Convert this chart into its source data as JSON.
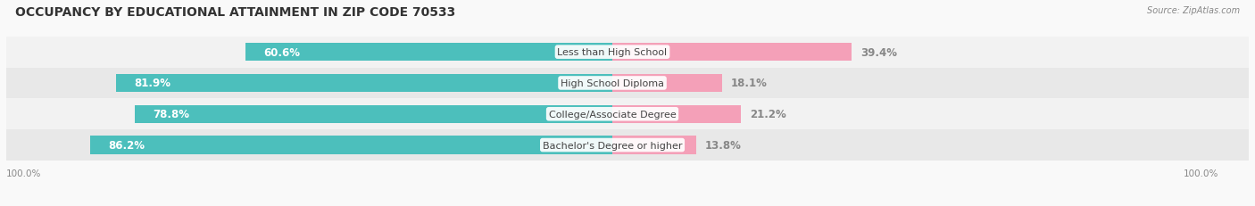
{
  "title": "OCCUPANCY BY EDUCATIONAL ATTAINMENT IN ZIP CODE 70533",
  "source": "Source: ZipAtlas.com",
  "categories": [
    "Less than High School",
    "High School Diploma",
    "College/Associate Degree",
    "Bachelor's Degree or higher"
  ],
  "owner_values": [
    60.6,
    81.9,
    78.8,
    86.2
  ],
  "renter_values": [
    39.4,
    18.1,
    21.2,
    13.8
  ],
  "owner_color": "#4CBFBC",
  "renter_color": "#F4A0B8",
  "row_colors": [
    "#F2F2F2",
    "#E8E8E8",
    "#F2F2F2",
    "#E8E8E8"
  ],
  "owner_label_color": "#FFFFFF",
  "renter_label_color": "#888888",
  "center_label_color": "#444444",
  "title_fontsize": 10,
  "label_fontsize": 8.5,
  "cat_fontsize": 8.0,
  "axis_label_fontsize": 7.5,
  "legend_fontsize": 8,
  "background_color": "#F9F9F9",
  "bar_height": 0.58
}
